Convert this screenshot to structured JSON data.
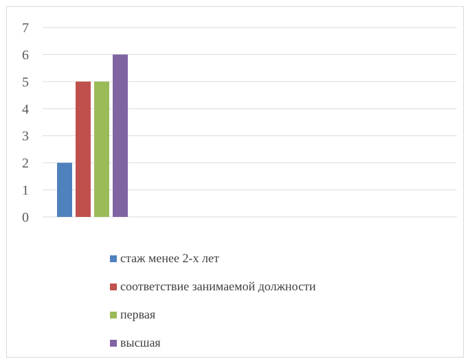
{
  "chart_data": {
    "type": "bar",
    "categories": [
      ""
    ],
    "series": [
      {
        "name": "стаж менее 2-х лет",
        "values": [
          2
        ],
        "color": "#4F81BD"
      },
      {
        "name": "соответствие занимаемой должности",
        "values": [
          5
        ],
        "color": "#C0504D"
      },
      {
        "name": "первая",
        "values": [
          5
        ],
        "color": "#9BBB59"
      },
      {
        "name": "высшая",
        "values": [
          6
        ],
        "color": "#8064A2"
      }
    ],
    "title": "",
    "xlabel": "",
    "ylabel": "",
    "ylim": [
      0,
      7
    ],
    "yticks": [
      "0",
      "1",
      "2",
      "3",
      "4",
      "5",
      "6",
      "7"
    ],
    "grid": true,
    "legend_position": "bottom"
  },
  "colors": {
    "gridline": "#d9d9d9",
    "axis": "#d9d9d9"
  }
}
